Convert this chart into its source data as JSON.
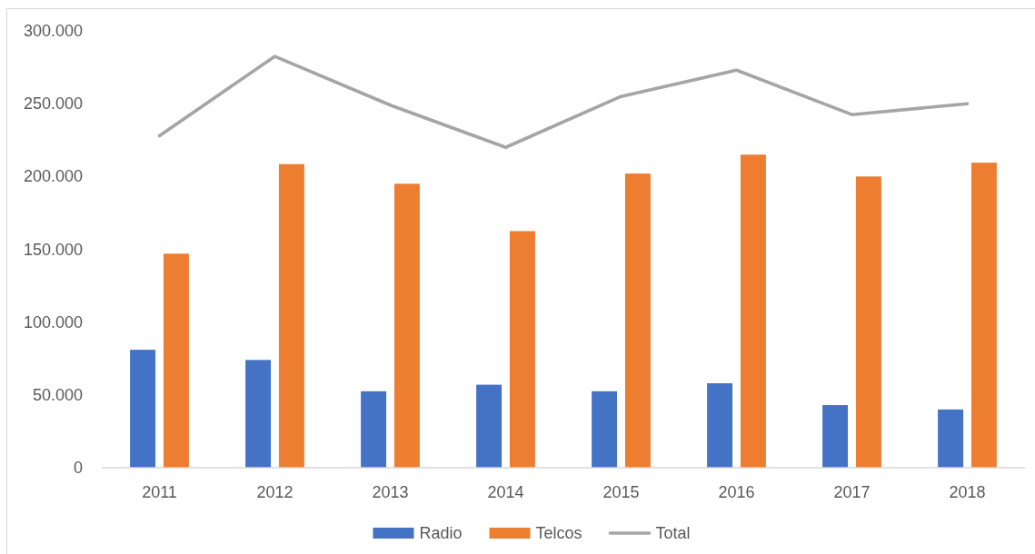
{
  "chart_data": {
    "type": "bar",
    "categories": [
      "2011",
      "2012",
      "2013",
      "2014",
      "2015",
      "2016",
      "2017",
      "2018"
    ],
    "series": [
      {
        "name": "Radio",
        "color": "#4472c4",
        "values": [
          81000,
          74000,
          52500,
          57000,
          52500,
          58000,
          43000,
          40000
        ]
      },
      {
        "name": "Telcos",
        "color": "#ed7d31",
        "values": [
          147000,
          208500,
          195000,
          162500,
          202000,
          215000,
          200000,
          209500
        ]
      },
      {
        "name": "Total",
        "type": "line",
        "color": "#a5a5a5",
        "values": [
          228000,
          282500,
          249000,
          220000,
          255000,
          273000,
          242500,
          250000
        ]
      }
    ],
    "ylim": [
      0,
      300000
    ],
    "yticks": [
      0,
      {
        "value": 50000,
        "label": "50.000"
      },
      {
        "value": 100000,
        "label": "100.000"
      },
      {
        "value": 150000,
        "label": "150.000"
      },
      {
        "value": 200000,
        "label": "200.000"
      },
      {
        "value": 250000,
        "label": "250.000"
      },
      {
        "value": 300000,
        "label": "300.000"
      }
    ],
    "legend": "bottom"
  }
}
